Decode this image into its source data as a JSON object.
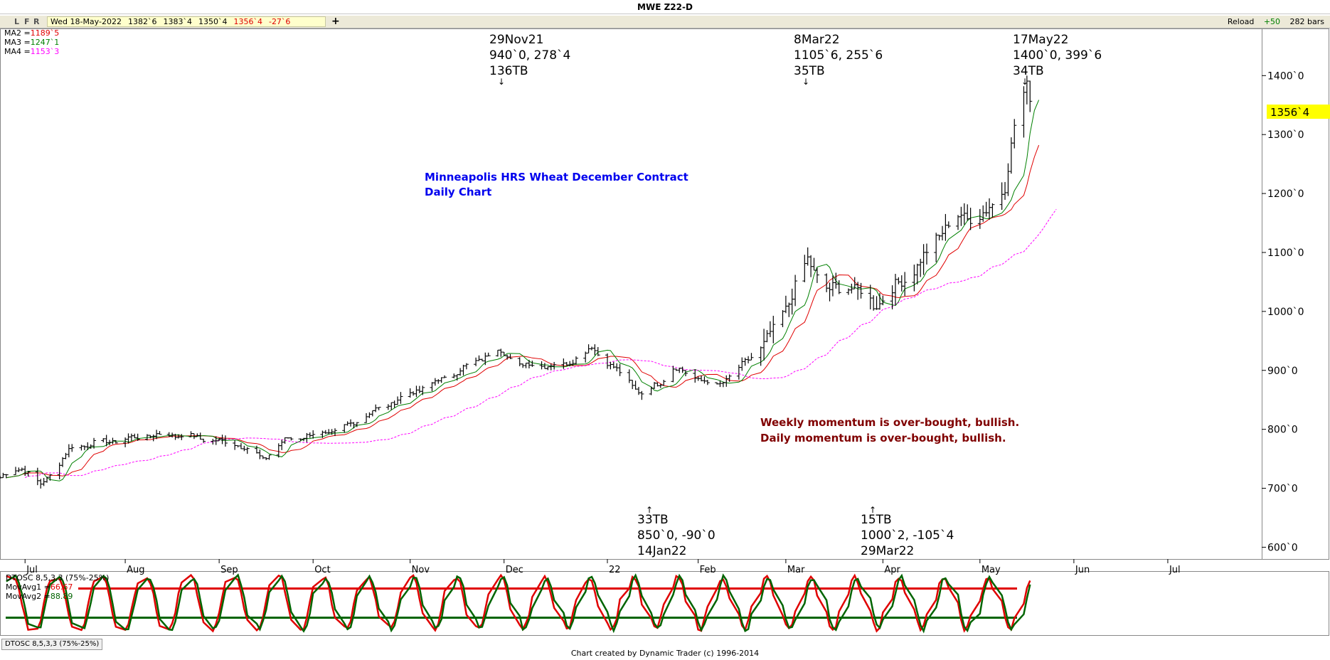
{
  "window": {
    "title": "MWE Z22-D"
  },
  "toolbar": {
    "lfr": [
      "L",
      "F",
      "R"
    ],
    "quote": {
      "date": "Wed 18-May-2022",
      "open": "1382`6",
      "high": "1383`4",
      "low": "1350`4",
      "close": "1356`4",
      "change": "-27`6"
    },
    "plus": "+",
    "reload_label": "Reload",
    "plus50_label": "+50",
    "bars_label": "282 bars"
  },
  "legend": [
    {
      "label": "MA2 =",
      "value": "1189`5",
      "color": "#e00000"
    },
    {
      "label": "MA3 =",
      "value": "1247`1",
      "color": "#008000"
    },
    {
      "label": "MA4 =",
      "value": "1153`3",
      "color": "#ff00ff"
    }
  ],
  "osc_legend": [
    {
      "label": "DTOSC 8,5,3,3 (75%-25%)",
      "value": "",
      "color": "#000000"
    },
    {
      "label": "MovAvg1 =",
      "value": "66.67",
      "color": "#e00000"
    },
    {
      "label": "MovAvg2 =",
      "value": "88.89",
      "color": "#006400"
    }
  ],
  "annotations": {
    "chart_title_1": "Minneapolis HRS Wheat December Contract",
    "chart_title_2": "Daily Chart",
    "momentum_1": "Weekly momentum is over-bought, bullish.",
    "momentum_2": "Daily momentum is over-bought, bullish.",
    "pivots": [
      {
        "lines": [
          "29Nov21",
          "940`0, 278`4",
          "136TB"
        ],
        "arrow": "↓"
      },
      {
        "lines": [
          "8Mar22",
          "1105`6, 255`6",
          "35TB"
        ],
        "arrow": "↓"
      },
      {
        "lines": [
          "17May22",
          "1400`0, 399`6",
          "34TB"
        ],
        "arrow": "↓"
      },
      {
        "lines": [
          "33TB",
          "850`0, -90`0",
          "14Jan22"
        ],
        "arrow": "↑"
      },
      {
        "lines": [
          "15TB",
          "1000`2, -105`4",
          "29Mar22"
        ],
        "arrow": "↑"
      }
    ]
  },
  "price_label": "1356`4",
  "footer": {
    "tab": "DTOSC 8,5,3,3 (75%-25%)",
    "credit": "Chart created by Dynamic Trader  (c) 1996-2014"
  },
  "colors": {
    "ma2": "#e00000",
    "ma3": "#008000",
    "ma4": "#ff00ff",
    "annotation_blue": "#0000ee",
    "annotation_dark": "#800000",
    "price_label_bg": "#ffff00"
  },
  "chart_data": [
    {
      "type": "ohlc",
      "y_ticks": [
        "600`0",
        "700`0",
        "800`0",
        "900`0",
        "1000`0",
        "1100`0",
        "1200`0",
        "1300`0",
        "1400`0"
      ],
      "y_tick_values": [
        600,
        700,
        800,
        900,
        1000,
        1100,
        1200,
        1300,
        1400
      ],
      "ylim": [
        580,
        1480
      ],
      "x_ticks": [
        "Jul",
        "Aug",
        "Sep",
        "Oct",
        "Nov",
        "Dec",
        "22",
        "Feb",
        "Mar",
        "Apr",
        "May",
        "Jun",
        "Jul"
      ],
      "x_tick_dates": [
        "2021-07-01",
        "2021-08-02",
        "2021-09-01",
        "2021-10-01",
        "2021-11-01",
        "2021-12-01",
        "2022-01-03",
        "2022-02-01",
        "2022-03-01",
        "2022-04-01",
        "2022-05-02",
        "2022-06-01",
        "2022-07-01"
      ],
      "xlim": [
        "2021-06-23",
        "2022-07-31"
      ],
      "price_waypoints": [
        [
          "2021-06-23",
          718
        ],
        [
          "2021-06-30",
          735
        ],
        [
          "2021-07-06",
          705
        ],
        [
          "2021-07-16",
          770
        ],
        [
          "2021-08-10",
          790
        ],
        [
          "2021-08-20",
          790
        ],
        [
          "2021-09-07",
          775
        ],
        [
          "2021-09-15",
          750
        ],
        [
          "2021-09-23",
          785
        ],
        [
          "2021-10-08",
          795
        ],
        [
          "2021-10-20",
          830
        ],
        [
          "2021-11-05",
          870
        ],
        [
          "2021-11-15",
          895
        ],
        [
          "2021-11-29",
          935
        ],
        [
          "2021-12-06",
          910
        ],
        [
          "2021-12-20",
          908
        ],
        [
          "2021-12-29",
          938
        ],
        [
          "2022-01-05",
          905
        ],
        [
          "2022-01-14",
          860
        ],
        [
          "2022-01-20",
          880
        ],
        [
          "2022-01-24",
          905
        ],
        [
          "2022-02-07",
          872
        ],
        [
          "2022-02-17",
          918
        ],
        [
          "2022-02-25",
          965
        ],
        [
          "2022-03-08",
          1085
        ],
        [
          "2022-03-15",
          1035
        ],
        [
          "2022-03-22",
          1045
        ],
        [
          "2022-03-29",
          1010
        ],
        [
          "2022-04-06",
          1045
        ],
        [
          "2022-04-14",
          1090
        ],
        [
          "2022-04-20",
          1140
        ],
        [
          "2022-04-26",
          1160
        ],
        [
          "2022-05-04",
          1165
        ],
        [
          "2022-05-10",
          1215
        ],
        [
          "2022-05-13",
          1310
        ],
        [
          "2022-05-17",
          1385
        ],
        [
          "2022-05-18",
          1356.5
        ]
      ],
      "pivot_high": {
        "date": "2022-05-17",
        "value": 1400
      },
      "pivot_low": {
        "date": "2022-01-14",
        "value": 850
      },
      "series": [
        {
          "name": "MA2",
          "color": "#e00000",
          "style": "solid",
          "last": "1189`5"
        },
        {
          "name": "MA3",
          "color": "#008000",
          "style": "solid",
          "last": "1247`1"
        },
        {
          "name": "MA4",
          "color": "#ff00ff",
          "style": "dashed",
          "last": "1153`3"
        }
      ]
    },
    {
      "type": "line",
      "title": "DTOSC 8,5,3,3 (75%-25%)",
      "ylim": [
        0,
        100
      ],
      "bands": [
        75,
        25
      ],
      "series": [
        {
          "name": "MovAvg1",
          "color": "#e00000",
          "last": 66.67
        },
        {
          "name": "MovAvg2",
          "color": "#006400",
          "last": 88.89
        }
      ]
    }
  ]
}
